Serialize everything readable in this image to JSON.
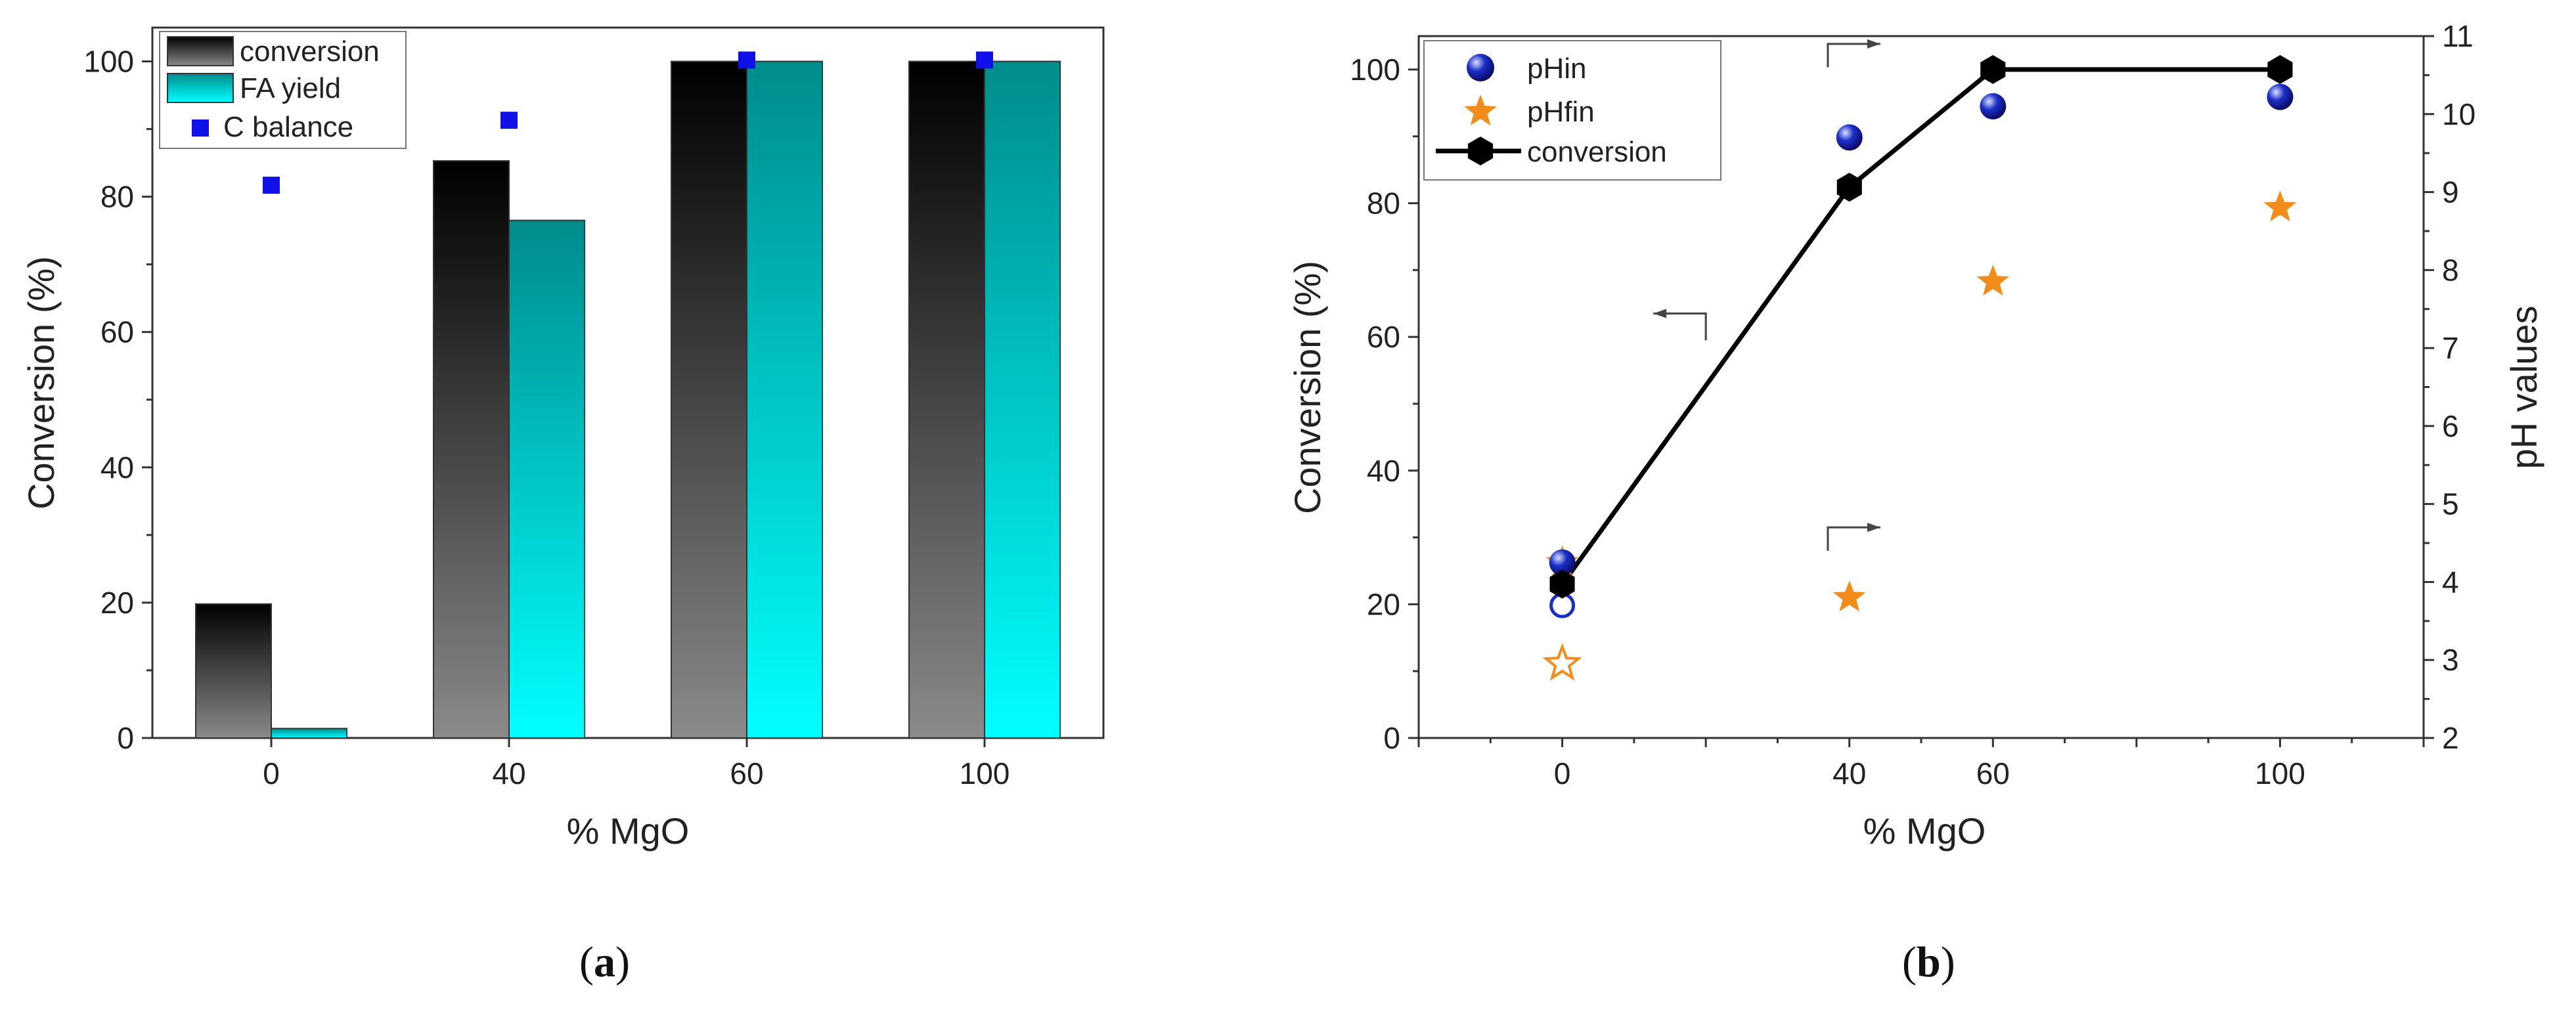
{
  "colors": {
    "conversion_top": "#000000",
    "conversion_bottom": "#8a8a8a",
    "fa_top": "#008c8c",
    "fa_bottom": "#00ffff",
    "c_balance": "#1010e8",
    "ph_in": "#1a2fc8",
    "ph_fin": "#f28c1a",
    "line": "#000000"
  },
  "chart_data": [
    {
      "type": "bar",
      "panel_label": "a",
      "categories": [
        "0",
        "40",
        "60",
        "100"
      ],
      "series": [
        {
          "name": "conversion",
          "values": [
            19.8,
            85.3,
            100,
            100
          ]
        },
        {
          "name": "FA yield",
          "values": [
            1.4,
            76.5,
            100,
            100
          ]
        },
        {
          "name": "C balance",
          "kind": "scatter",
          "values": [
            81.7,
            91.3,
            100.2,
            100.2
          ]
        }
      ],
      "xlabel": "% MgO",
      "ylabel": "Conversion (%)",
      "ylim": [
        0,
        105
      ],
      "yticks": [
        0,
        20,
        40,
        60,
        80,
        100
      ],
      "legend": [
        "conversion",
        "FA yield",
        "C balance"
      ],
      "legend_position": "top-left"
    },
    {
      "type": "line",
      "panel_label": "b",
      "x": [
        0,
        40,
        60,
        100
      ],
      "xticks": [
        "0",
        "40",
        "60",
        "100"
      ],
      "xlim": [
        -20,
        120
      ],
      "series": [
        {
          "name": "conversion",
          "axis": "left",
          "values": [
            23,
            82.4,
            100,
            100
          ]
        },
        {
          "name": "pHin",
          "axis": "right",
          "kind": "scatter",
          "values": [
            4.25,
            9.7,
            10.1,
            10.22
          ]
        },
        {
          "name": "pHfin",
          "axis": "right",
          "kind": "scatter",
          "values": [
            4.25,
            3.8,
            7.85,
            8.8
          ]
        }
      ],
      "extra_points": [
        {
          "name": "pHin open",
          "axis": "right",
          "x": 0,
          "y": 3.7
        },
        {
          "name": "pHfin open",
          "axis": "right",
          "x": 0,
          "y": 2.95
        }
      ],
      "xlabel": "% MgO",
      "ylabel": "Conversion (%)",
      "y2label": "pH values",
      "ylim": [
        0,
        105
      ],
      "y2lim": [
        2,
        11
      ],
      "yticks": [
        0,
        20,
        40,
        60,
        80,
        100
      ],
      "y2ticks": [
        2,
        3,
        4,
        5,
        6,
        7,
        8,
        9,
        10,
        11
      ],
      "legend": [
        "pHin",
        "pHfin",
        "conversion"
      ],
      "legend_position": "top-left",
      "arrows": [
        {
          "x": 20,
          "axis": "left",
          "y_from": 59.5,
          "y_to": 63.5,
          "dir": "left"
        },
        {
          "x": 37,
          "axis": "right",
          "y_from": 10.6,
          "y_to": 10.9,
          "dir": "right"
        },
        {
          "x": 37,
          "axis": "right",
          "y_from": 4.4,
          "y_to": 4.7,
          "dir": "right"
        }
      ]
    }
  ]
}
